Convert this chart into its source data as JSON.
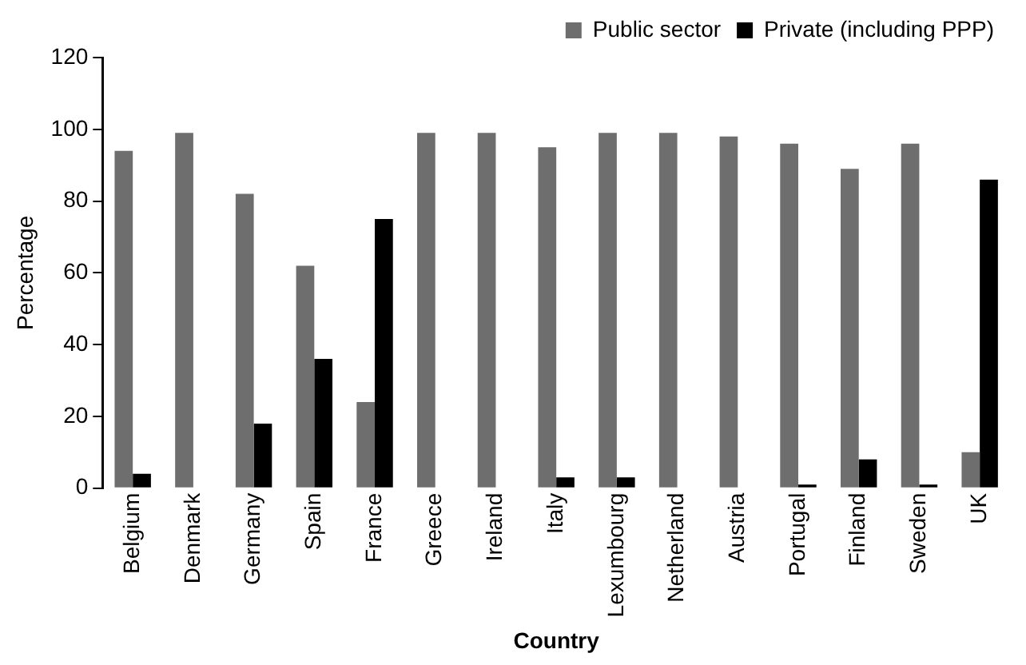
{
  "chart_data": {
    "type": "bar",
    "xlabel": "Country",
    "ylabel": "Percentage",
    "categories": [
      "Belgium",
      "Denmark",
      "Germany",
      "Spain",
      "France",
      "Greece",
      "Ireland",
      "Italy",
      "Lexumbourg",
      "Netherland",
      "Austria",
      "Portugal",
      "Finland",
      "Sweden",
      "UK"
    ],
    "series": [
      {
        "name": "Public sector",
        "color": "#6e6e6e",
        "values": [
          94,
          99,
          82,
          62,
          24,
          99,
          99,
          95,
          99,
          99,
          98,
          96,
          89,
          96,
          10
        ]
      },
      {
        "name": "Private (including PPP)",
        "color": "#000000",
        "values": [
          4,
          0,
          18,
          36,
          75,
          0,
          0,
          3,
          3,
          0,
          0,
          1,
          8,
          1,
          86
        ]
      }
    ],
    "ylim": [
      0,
      120
    ],
    "yticks": [
      0,
      20,
      40,
      60,
      80,
      100,
      120
    ],
    "grid": false,
    "legend": "top right"
  }
}
